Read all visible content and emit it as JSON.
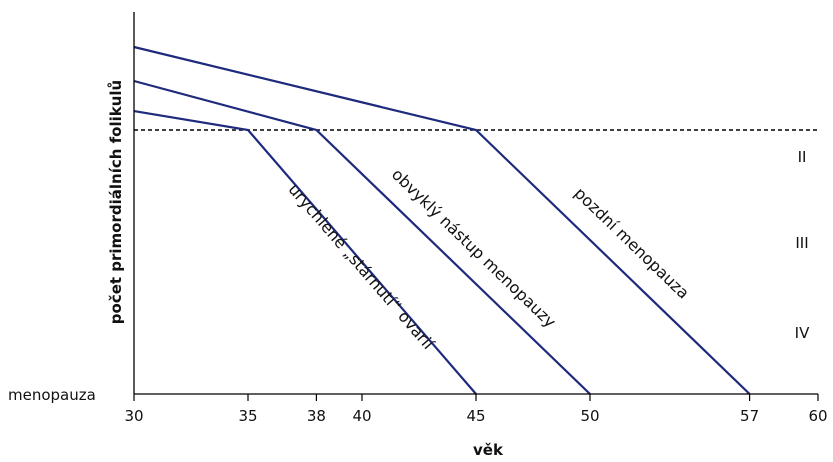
{
  "chart_data": {
    "type": "line",
    "title": "",
    "xlabel": "věk",
    "ylabel": "počet primordiálních folikulů",
    "xlim": [
      30,
      60
    ],
    "x_ticks": [
      30,
      35,
      38,
      40,
      45,
      50,
      57,
      60
    ],
    "baseline_label": "menopauza",
    "threshold_label": "",
    "stage_labels": [
      "II",
      "III",
      "IV"
    ],
    "legend": "none",
    "grid": false,
    "series": [
      {
        "name": "urychlené „stárnutí“ ovarií",
        "points": [
          [
            30,
            0.75
          ],
          [
            35,
            0.7
          ],
          [
            45,
            0.0
          ]
        ]
      },
      {
        "name": "obvyklý nástup menopauzy",
        "points": [
          [
            30,
            0.83
          ],
          [
            38,
            0.7
          ],
          [
            50,
            0.0
          ]
        ]
      },
      {
        "name": "pozdní menopauza",
        "points": [
          [
            30,
            0.92
          ],
          [
            45,
            0.7
          ],
          [
            57,
            0.0
          ]
        ]
      }
    ],
    "threshold_y": 0.7,
    "colors": {
      "series": "#1e2a7c",
      "axis": "#000000"
    }
  }
}
